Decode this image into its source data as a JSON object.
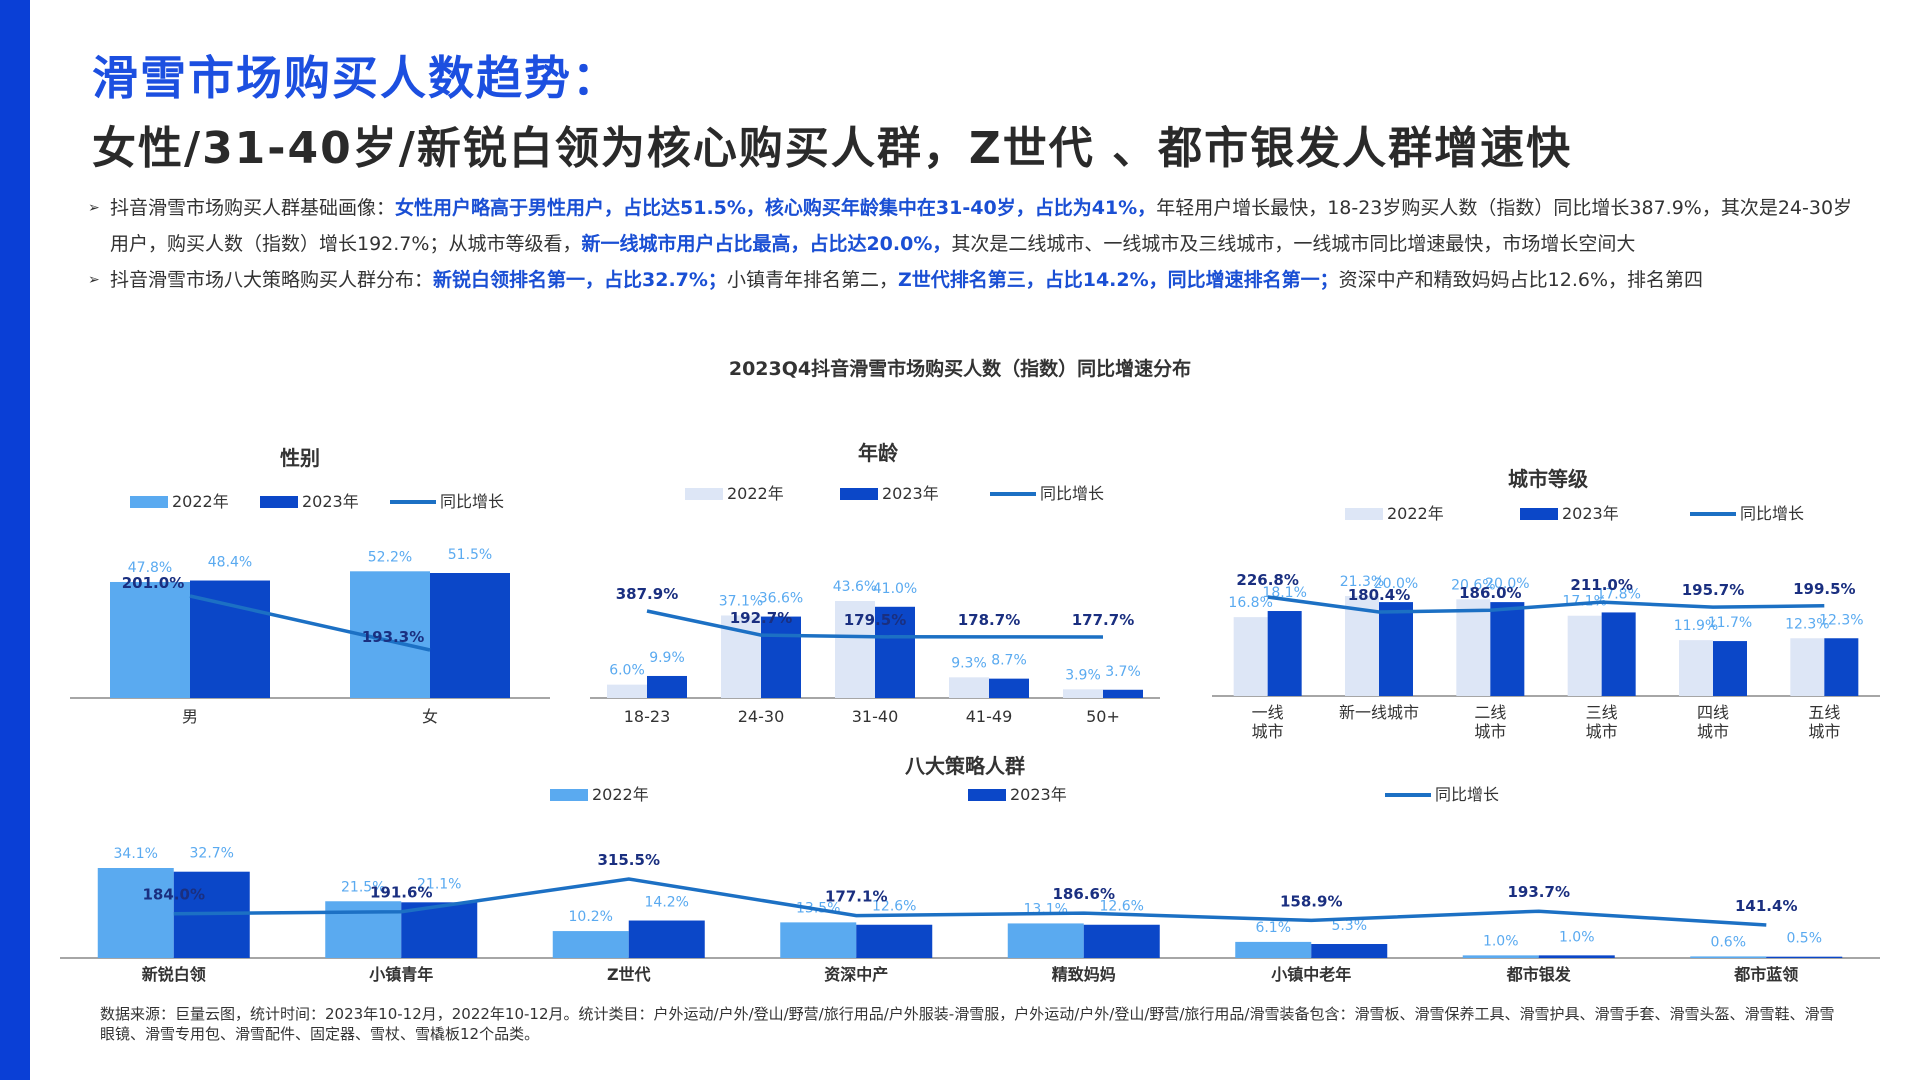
{
  "header": {
    "title1": "滑雪市场购买人数趋势：",
    "title2": "女性/31-40岁/新锐白领为核心购买人群，Z世代 、都市银发人群增速快"
  },
  "bullets": [
    {
      "p1": "抖音滑雪市场购买人群基础画像：",
      "h1": "女性用户略高于男性用户，占比达51.5%，核心购买年龄集中在31-40岁，占比为41%，",
      "p2": "年轻用户增长最快，18-23岁购买人数（指数）同比增长387.9%，其次是24-30岁用户，购买人数（指数）增长192.7%；从城市等级看，",
      "h2": "新一线城市用户占比最高，占比达20.0%，",
      "p3": "其次是二线城市、一线城市及三线城市，一线城市同比增速最快，市场增长空间大"
    },
    {
      "p1": "抖音滑雪市场八大策略购买人群分布：",
      "h1": "新锐白领排名第一，占比32.7%；",
      "p2": "小镇青年排名第二，",
      "h2": "Z世代排名第三，占比14.2%，同比增速排名第一；",
      "p3": "资深中产和精致妈妈占比12.6%，排名第四"
    }
  ],
  "chart_section_title": "2023Q4抖音滑雪市场购买人数（指数）同比增速分布",
  "legend": {
    "y2022": "2022年",
    "y2023": "2023年",
    "growth": "同比增长"
  },
  "colors": {
    "y2022_gender": "#5aaaf0",
    "y2022_light": "#dde6f6",
    "y2023": "#0b47c8",
    "line": "#1c70c4",
    "growth_text": "#1a2f80",
    "pct_2022": "#5aaaf0",
    "pct_2023": "#5aaaf0"
  },
  "chart_data": [
    {
      "type": "bar",
      "title": "性别",
      "categories": [
        "男",
        "女"
      ],
      "series": [
        {
          "name": "2022年",
          "values": [
            47.8,
            52.2
          ],
          "labels": [
            "47.8%",
            "52.2%"
          ]
        },
        {
          "name": "2023年",
          "values": [
            48.4,
            51.5
          ],
          "labels": [
            "48.4%",
            "51.5%"
          ]
        },
        {
          "name": "同比增长",
          "type": "line",
          "values": [
            201.0,
            193.3
          ],
          "labels": [
            "201.0%",
            "193.3%"
          ]
        }
      ]
    },
    {
      "type": "bar",
      "title": "年龄",
      "categories": [
        "18-23",
        "24-30",
        "31-40",
        "41-49",
        "50+"
      ],
      "series": [
        {
          "name": "2022年",
          "values": [
            6.0,
            37.1,
            43.6,
            9.3,
            3.9
          ],
          "labels": [
            "6.0%",
            "37.1%",
            "43.6%",
            "9.3%",
            "3.9%"
          ]
        },
        {
          "name": "2023年",
          "values": [
            9.9,
            36.6,
            41.0,
            8.7,
            3.7
          ],
          "labels": [
            "9.9%",
            "36.6%",
            "41.0%",
            "8.7%",
            "3.7%"
          ]
        },
        {
          "name": "同比增长",
          "type": "line",
          "values": [
            387.9,
            192.7,
            179.5,
            178.7,
            177.7
          ],
          "labels": [
            "387.9%",
            "192.7%",
            "179.5%",
            "178.7%",
            "177.7%"
          ]
        }
      ]
    },
    {
      "type": "bar",
      "title": "城市等级",
      "categories": [
        "一线城市",
        "新一线城市",
        "二线城市",
        "三线城市",
        "四线城市",
        "五线城市"
      ],
      "category_lines": [
        [
          "一线",
          "城市"
        ],
        [
          "新一线城市"
        ],
        [
          "二线",
          "城市"
        ],
        [
          "三线",
          "城市"
        ],
        [
          "四线",
          "城市"
        ],
        [
          "五线",
          "城市"
        ]
      ],
      "series": [
        {
          "name": "2022年",
          "values": [
            16.8,
            21.3,
            20.6,
            17.1,
            11.9,
            12.3
          ],
          "labels": [
            "16.8%",
            "21.3%",
            "20.6%",
            "17.1%",
            "11.9%",
            "12.3%"
          ]
        },
        {
          "name": "2023年",
          "values": [
            18.1,
            20.0,
            20.0,
            17.8,
            11.7,
            12.3
          ],
          "labels": [
            "18.1%",
            "20.0%",
            "20.0%",
            "17.8%",
            "11.7%",
            "12.3%"
          ]
        },
        {
          "name": "同比增长",
          "type": "line",
          "values": [
            226.8,
            180.4,
            186.0,
            211.0,
            195.7,
            199.5
          ],
          "labels": [
            "226.8%",
            "180.4%",
            "186.0%",
            "211.0%",
            "195.7%",
            "199.5%"
          ]
        }
      ]
    },
    {
      "type": "bar",
      "title": "八大策略人群",
      "categories": [
        "新锐白领",
        "小镇青年",
        "Z世代",
        "资深中产",
        "精致妈妈",
        "小镇中老年",
        "都市银发",
        "都市蓝领"
      ],
      "series": [
        {
          "name": "2022年",
          "values": [
            34.1,
            21.5,
            10.2,
            13.5,
            13.1,
            6.1,
            1.0,
            0.6
          ],
          "labels": [
            "34.1%",
            "21.5%",
            "10.2%",
            "13.5%",
            "13.1%",
            "6.1%",
            "1.0%",
            "0.6%"
          ]
        },
        {
          "name": "2023年",
          "values": [
            32.7,
            21.1,
            14.2,
            12.6,
            12.6,
            5.3,
            1.0,
            0.5
          ],
          "labels": [
            "32.7%",
            "21.1%",
            "14.2%",
            "12.6%",
            "12.6%",
            "5.3%",
            "1.0%",
            "0.5%"
          ]
        },
        {
          "name": "同比增长",
          "type": "line",
          "values": [
            184.0,
            191.6,
            315.5,
            177.1,
            186.6,
            158.9,
            193.7,
            141.4
          ],
          "labels": [
            "184.0%",
            "191.6%",
            "315.5%",
            "177.1%",
            "186.6%",
            "158.9%",
            "193.7%",
            "141.4%"
          ]
        }
      ]
    }
  ],
  "source": "数据来源：巨量云图，统计时间：2023年10-12月，2022年10-12月。统计类目：户外运动/户外/登山/野营/旅行用品/户外服装-滑雪服，户外运动/户外/登山/野营/旅行用品/滑雪装备包含：滑雪板、滑雪保养工具、滑雪护具、滑雪手套、滑雪头盔、滑雪鞋、滑雪眼镜、滑雪专用包、滑雪配件、固定器、雪杖、雪橇板12个品类。"
}
